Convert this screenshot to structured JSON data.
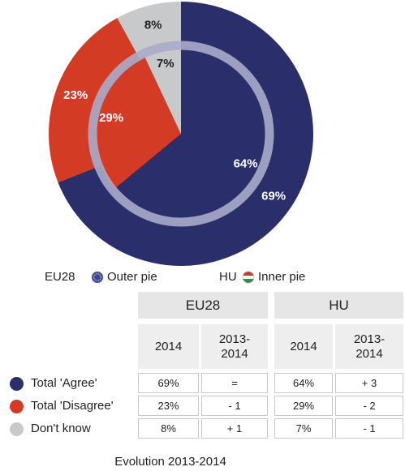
{
  "chart_data": {
    "type": "pie",
    "categories": [
      "Total 'Agree'",
      "Total 'Disagree'",
      "Don't know"
    ],
    "colors": [
      "#2a2f6c",
      "#d43b25",
      "#c8c9cb"
    ],
    "series": [
      {
        "name": "EU28",
        "legend_label": "Outer pie",
        "values": [
          69,
          23,
          8
        ],
        "value_labels": [
          "69%",
          "23%",
          "8%"
        ]
      },
      {
        "name": "HU",
        "legend_label": "Inner pie",
        "values": [
          64,
          29,
          7
        ],
        "value_labels": [
          "64%",
          "29%",
          "7%"
        ]
      }
    ]
  },
  "table": {
    "columns": [
      "2014",
      "2013-2014",
      "2014",
      "2013-2014"
    ],
    "rows": [
      [
        "69%",
        "=",
        "64%",
        "+ 3"
      ],
      [
        "23%",
        "- 1",
        "29%",
        "- 2"
      ],
      [
        "8%",
        "+ 1",
        "7%",
        "- 1"
      ]
    ],
    "caption": "Evolution 2013-2014"
  }
}
